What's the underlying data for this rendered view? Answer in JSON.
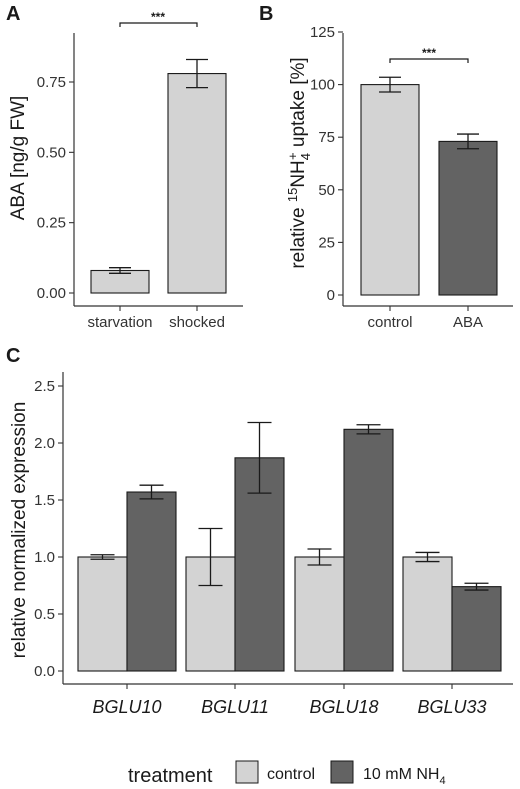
{
  "chart_data": [
    {
      "type": "bar",
      "panel": "A",
      "categories": [
        "starvation",
        "shocked"
      ],
      "values": [
        0.08,
        0.78
      ],
      "errors": [
        0.01,
        0.05
      ],
      "ylabel": "ABA [ng/g FW]",
      "ylim": [
        0,
        0.88
      ],
      "yticks": [
        "0.00",
        "0.25",
        "0.50",
        "0.75"
      ],
      "significance": "***",
      "fill": "#d3d3d3"
    },
    {
      "type": "bar",
      "panel": "B",
      "categories": [
        "control",
        "ABA"
      ],
      "values": [
        100,
        73
      ],
      "errors": [
        3.5,
        3.5
      ],
      "ylabel_pre": "relative ",
      "ylabel_sup1": "15",
      "ylabel_mid": "NH",
      "ylabel_sub": "4",
      "ylabel_sup2": "+",
      "ylabel_post": " uptake [%]",
      "ylim": [
        0,
        125
      ],
      "yticks": [
        "0",
        "25",
        "50",
        "75",
        "100",
        "125"
      ],
      "significance": "***",
      "fills": [
        "#d3d3d3",
        "#636363"
      ]
    },
    {
      "type": "bar",
      "panel": "C",
      "categories": [
        "BGLU10",
        "BGLU11",
        "BGLU18",
        "BGLU33"
      ],
      "series": [
        {
          "name": "control",
          "values": [
            1.0,
            1.0,
            1.0,
            1.0
          ],
          "errors": [
            0.02,
            0.25,
            0.07,
            0.04
          ],
          "color": "#d3d3d3"
        },
        {
          "name": "10 mM NH4",
          "values": [
            1.57,
            1.87,
            2.12,
            0.74
          ],
          "errors": [
            0.06,
            0.31,
            0.04,
            0.03
          ],
          "color": "#636363"
        }
      ],
      "ylabel": "relative normalized expression",
      "ylim": [
        0,
        2.58
      ],
      "yticks": [
        "0.0",
        "0.5",
        "1.0",
        "1.5",
        "2.0",
        "2.5"
      ],
      "legend": {
        "title": "treatment",
        "items": [
          {
            "label": "control",
            "color": "#d3d3d3"
          },
          {
            "label_main": "10 mM NH",
            "label_sub": "4",
            "color": "#636363"
          }
        ]
      }
    }
  ]
}
